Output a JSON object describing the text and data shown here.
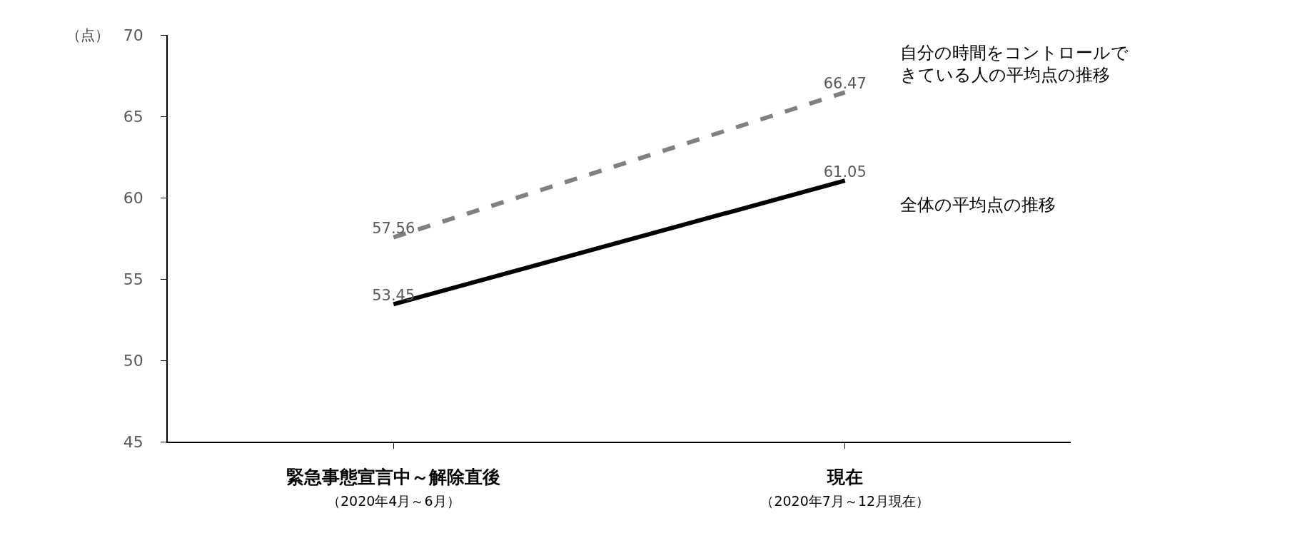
{
  "chart_data": {
    "type": "line",
    "categories": [
      "緊急事態宣言中～解除直後（2020年4月～6月）",
      "現在（2020年7月～12月現在）"
    ],
    "series": [
      {
        "name": "自分の時間をコントロールできている人の平均点の推移",
        "color": "#808080",
        "line_style": "dashed",
        "values": [
          57.56,
          66.47
        ]
      },
      {
        "name": "全体の平均点の推移",
        "color": "#000000",
        "line_style": "solid",
        "values": [
          53.45,
          61.05
        ]
      }
    ],
    "ylabel": "（点）",
    "ylim": [
      45,
      70
    ],
    "yticks": [
      45,
      50,
      55,
      60,
      65,
      70
    ],
    "legend": false,
    "marker": "none",
    "data_labels": true
  }
}
